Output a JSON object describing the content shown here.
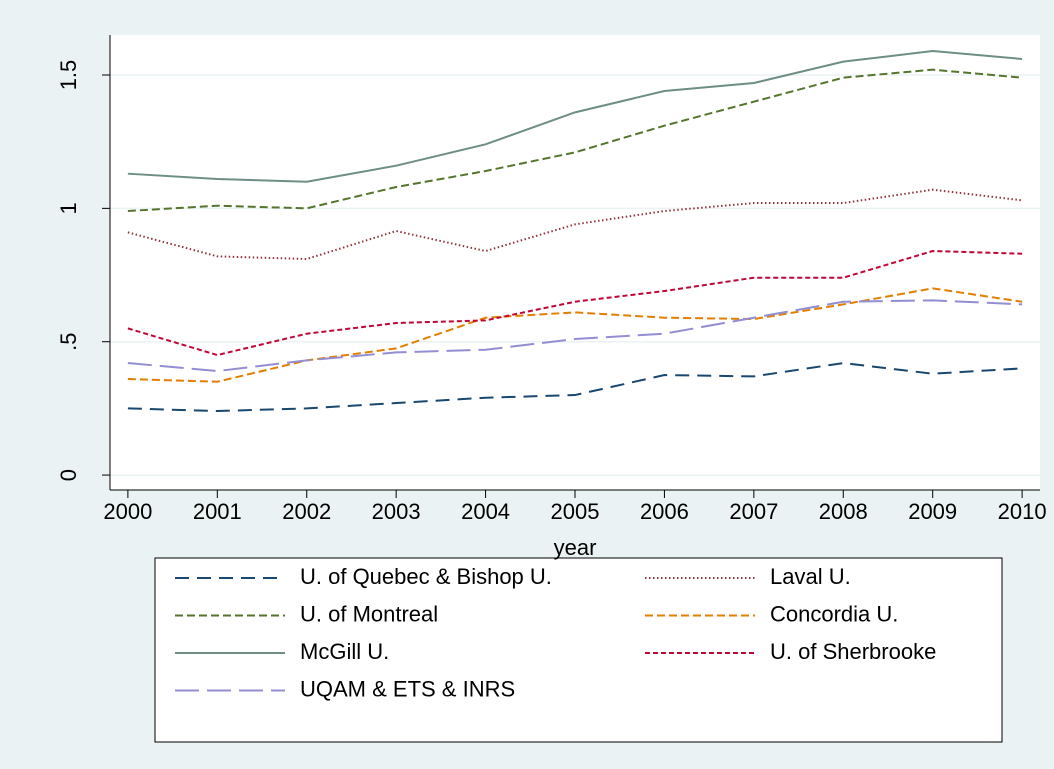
{
  "chart_data": {
    "type": "line",
    "x_label": "year",
    "x": [
      2000,
      2001,
      2002,
      2003,
      2004,
      2005,
      2006,
      2007,
      2008,
      2009,
      2010
    ],
    "xlim": [
      1999.8,
      2010.2
    ],
    "xticks": [
      2000,
      2001,
      2002,
      2003,
      2004,
      2005,
      2006,
      2007,
      2008,
      2009,
      2010
    ],
    "ylim": [
      -0.056,
      1.65
    ],
    "yticks": [
      0,
      {
        "value": 0.5,
        "label": ".5"
      },
      1,
      1.5
    ],
    "grid": true,
    "legend": "bottom",
    "series": [
      {
        "name": "U. of Quebec & Bishop U.",
        "color": "#1a476f",
        "dash": "longdash",
        "values": [
          0.25,
          0.24,
          0.25,
          0.27,
          0.29,
          0.3,
          0.375,
          0.37,
          0.42,
          0.38,
          0.4
        ]
      },
      {
        "name": "Laval U.",
        "color": "#90353b",
        "dash": "dot",
        "values": [
          0.91,
          0.82,
          0.81,
          0.915,
          0.84,
          0.94,
          0.99,
          1.02,
          1.02,
          1.07,
          1.03
        ]
      },
      {
        "name": "U. of Montreal",
        "color": "#55752f",
        "dash": "dash",
        "values": [
          0.99,
          1.01,
          1.0,
          1.08,
          1.14,
          1.21,
          1.31,
          1.4,
          1.49,
          1.52,
          1.49
        ]
      },
      {
        "name": "Concordia U.",
        "color": "#e37e00",
        "dash": "dash",
        "values": [
          0.36,
          0.35,
          0.43,
          0.475,
          0.59,
          0.61,
          0.59,
          0.585,
          0.64,
          0.7,
          0.65
        ]
      },
      {
        "name": "McGill U.",
        "color": "#6e8e84",
        "dash": "solid",
        "values": [
          1.13,
          1.11,
          1.1,
          1.16,
          1.24,
          1.36,
          1.44,
          1.47,
          1.55,
          1.59,
          1.56
        ]
      },
      {
        "name": "U. of Sherbrooke",
        "color": "#c10534",
        "dash": "shortdash",
        "values": [
          0.55,
          0.45,
          0.53,
          0.57,
          0.58,
          0.65,
          0.69,
          0.74,
          0.74,
          0.84,
          0.83
        ]
      },
      {
        "name": "UQAM & ETS & INRS",
        "color": "#938dd2",
        "dash": "verylongdash",
        "values": [
          0.42,
          0.39,
          0.43,
          0.46,
          0.47,
          0.51,
          0.53,
          0.59,
          0.65,
          0.655,
          0.64
        ]
      }
    ]
  }
}
